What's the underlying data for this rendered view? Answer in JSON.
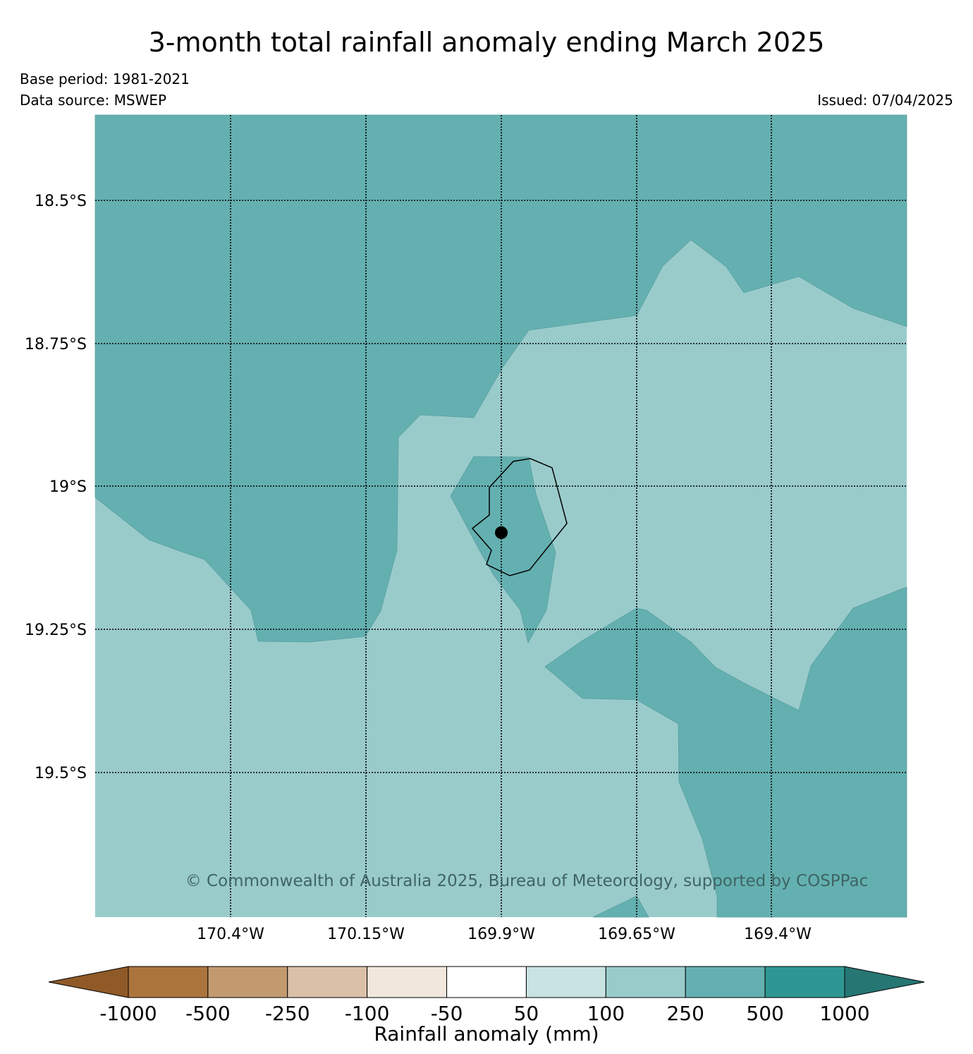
{
  "title": "3-month total rainfall anomaly ending March 2025",
  "base_period": "Base period: 1981-2021",
  "data_source": "Data source: MSWEP",
  "issued": "Issued: 07/04/2025",
  "copyright": "© Commonwealth of Australia 2025, Bureau of Meteorology, supported by COSPPac",
  "map": {
    "latitude_labels": [
      "18.5°S",
      "18.75°S",
      "19°S",
      "19.25°S",
      "19.5°S"
    ],
    "longitude_labels": [
      "170.4°W",
      "170.15°W",
      "169.9°W",
      "169.65°W",
      "169.4°W"
    ],
    "region_colors": {
      "anomaly_250_500": "#64b0b1",
      "anomaly_100_250": "#9acbcb"
    },
    "marker_color": "#000000"
  },
  "colorbar": {
    "label": "Rainfall anomaly (mm)",
    "ticks": [
      "-1000",
      "-500",
      "-250",
      "-100",
      "-50",
      "50",
      "100",
      "250",
      "500",
      "1000"
    ],
    "colors": [
      "#8f5a28",
      "#ab743d",
      "#c39a70",
      "#dbc0a8",
      "#f1e7dd",
      "#ffffff",
      "#c9e3e3",
      "#9acbcb",
      "#64b0b1",
      "#2f9793",
      "#267673"
    ]
  }
}
